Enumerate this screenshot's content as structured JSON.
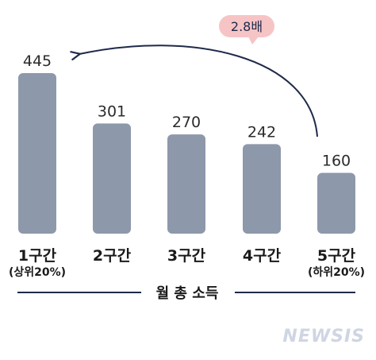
{
  "chart_data": {
    "type": "bar",
    "categories": [
      "1구간",
      "2구간",
      "3구간",
      "4구간",
      "5구간"
    ],
    "category_subtitles": [
      "(상위20%)",
      "",
      "",
      "",
      "(하위20%)"
    ],
    "values": [
      445,
      301,
      270,
      242,
      160
    ],
    "title": "",
    "xlabel": "월 총 소득",
    "ylabel": "",
    "ylim": [
      0,
      445
    ],
    "grid": false,
    "legend": "none",
    "bar_color": "#8e98ab",
    "annotation": {
      "text": "2.8배",
      "from_category": "5구간",
      "to_category": "1구간",
      "badge_color": "#f7c4c6",
      "arrow_color": "#1f2a4a"
    }
  },
  "watermark": "NEWSIS"
}
